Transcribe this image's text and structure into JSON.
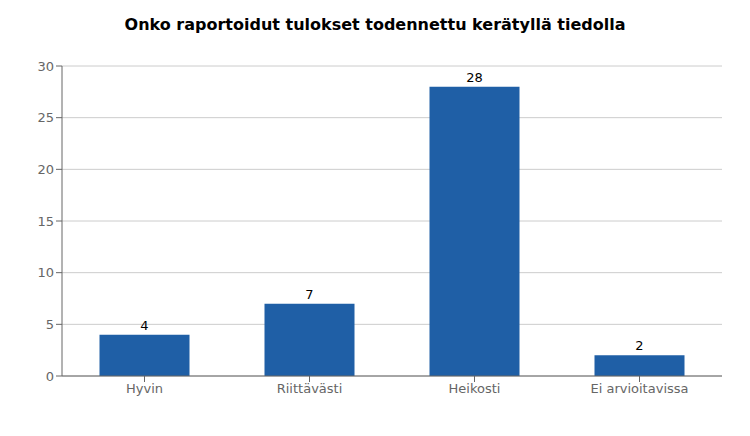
{
  "chart_data": {
    "type": "bar",
    "title": "Onko raportoidut tulokset todennettu kerätyllä tiedolla",
    "categories": [
      "Hyvin",
      "Riittävästi",
      "Heikosti",
      "Ei arvioitavissa"
    ],
    "values": [
      4,
      7,
      28,
      2
    ],
    "color": "#1f5fa6",
    "ylim": [
      0,
      30
    ],
    "yticks": [
      0,
      5,
      10,
      15,
      20,
      25,
      30
    ],
    "grid": true,
    "data_labels": true
  }
}
